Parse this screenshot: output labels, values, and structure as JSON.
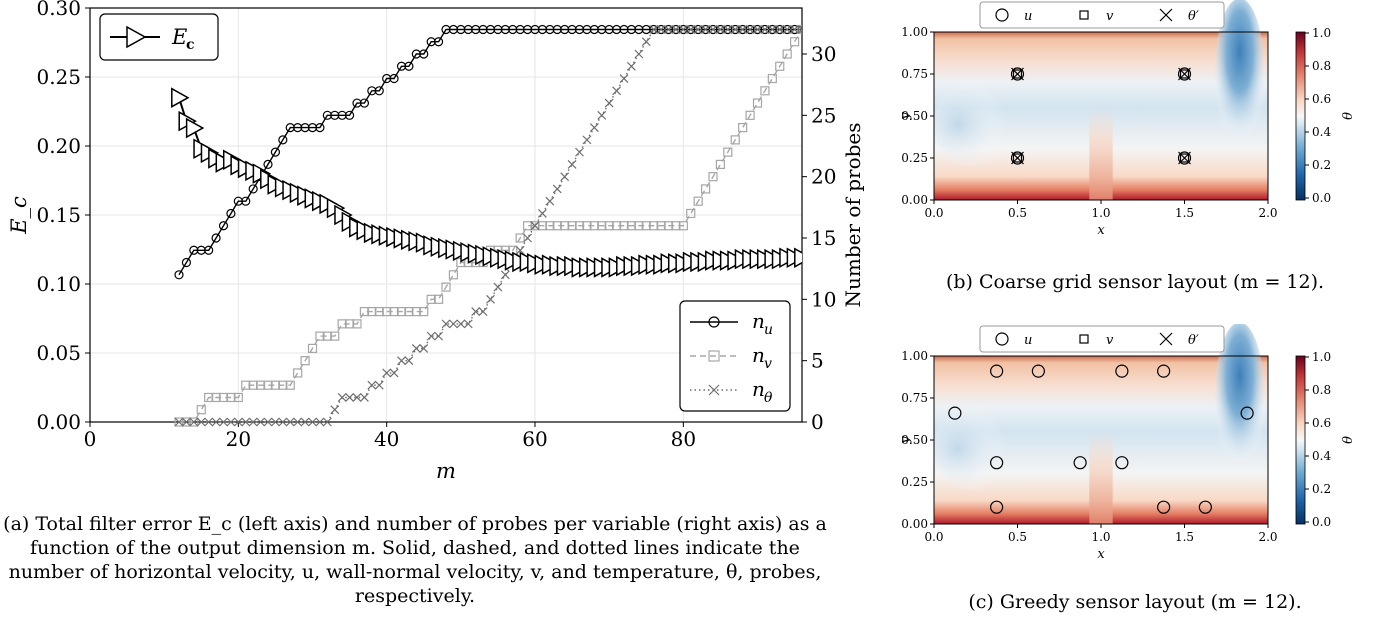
{
  "captions": {
    "a": "(a) Total filter error E_c (left axis) and number of probes per variable (right axis) as a function of the output dimension m. Solid, dashed, and dotted lines indicate the number of horizontal velocity, u, wall-normal velocity, v, and temperature, θ, probes, respectively.",
    "b": "(b) Coarse grid sensor layout (m = 12).",
    "c": "(c) Greedy sensor layout (m = 12)."
  },
  "chart_data": [
    {
      "type": "line",
      "xlabel": "m",
      "ylabel": "E_c",
      "y2label": "Number of probes",
      "xlim": [
        0,
        96
      ],
      "ylim": [
        0,
        0.3
      ],
      "y2lim": [
        0,
        33.75
      ],
      "xticks": [
        "0",
        "20",
        "40",
        "60",
        "80"
      ],
      "yticks": [
        "0.00",
        "0.05",
        "0.10",
        "0.15",
        "0.20",
        "0.25",
        "0.30"
      ],
      "y2ticks": [
        "0",
        "5",
        "10",
        "15",
        "20",
        "25",
        "30"
      ],
      "grid": true,
      "legend_top_left": [
        "E_c"
      ],
      "legend_bottom_right": [
        "n_u",
        "n_v",
        "n_θ"
      ],
      "colors": {
        "Ec": "#000000",
        "nu": "#000000",
        "nv": "#a6a6a6",
        "ntheta": "#6e6e6e"
      },
      "series": [
        {
          "name": "E_c",
          "axis": "left",
          "marker": "triangle-right",
          "style": "solid",
          "x": [
            12,
            13,
            14,
            15,
            16,
            17,
            18,
            19,
            20,
            21,
            22,
            23,
            24,
            25,
            26,
            27,
            28,
            29,
            30,
            31,
            32,
            33,
            34,
            35,
            36,
            37,
            38,
            39,
            40,
            41,
            42,
            43,
            44,
            45,
            46,
            47,
            48,
            49,
            50,
            51,
            52,
            53,
            54,
            55,
            56,
            57,
            58,
            59,
            60,
            61,
            62,
            63,
            64,
            65,
            66,
            67,
            68,
            69,
            70,
            71,
            72,
            73,
            74,
            75,
            76,
            77,
            78,
            79,
            80,
            81,
            82,
            83,
            84,
            85,
            86,
            87,
            88,
            89,
            90,
            91,
            92,
            93,
            94,
            95,
            96
          ],
          "y": [
            0.235,
            0.218,
            0.213,
            0.198,
            0.195,
            0.191,
            0.188,
            0.19,
            0.186,
            0.184,
            0.182,
            0.18,
            0.176,
            0.172,
            0.17,
            0.168,
            0.166,
            0.164,
            0.162,
            0.16,
            0.158,
            0.155,
            0.15,
            0.145,
            0.141,
            0.139,
            0.137,
            0.136,
            0.135,
            0.134,
            0.133,
            0.132,
            0.131,
            0.13,
            0.128,
            0.127,
            0.126,
            0.125,
            0.124,
            0.123,
            0.122,
            0.121,
            0.12,
            0.119,
            0.118,
            0.117,
            0.116,
            0.116,
            0.115,
            0.114,
            0.114,
            0.113,
            0.113,
            0.113,
            0.112,
            0.112,
            0.112,
            0.112,
            0.112,
            0.112,
            0.113,
            0.113,
            0.113,
            0.114,
            0.114,
            0.114,
            0.115,
            0.115,
            0.115,
            0.116,
            0.116,
            0.116,
            0.117,
            0.117,
            0.117,
            0.117,
            0.118,
            0.118,
            0.118,
            0.118,
            0.118,
            0.118,
            0.119,
            0.119,
            0.119
          ]
        },
        {
          "name": "n_u",
          "axis": "right",
          "marker": "circle",
          "style": "solid",
          "x": [
            12,
            13,
            14,
            15,
            16,
            17,
            18,
            19,
            20,
            21,
            22,
            23,
            24,
            25,
            26,
            27,
            28,
            29,
            30,
            31,
            32,
            33,
            34,
            35,
            36,
            37,
            38,
            39,
            40,
            41,
            42,
            43,
            44,
            45,
            46,
            47,
            48,
            49,
            50,
            51,
            52,
            53,
            54,
            55,
            56,
            57,
            58,
            59,
            60,
            61,
            62,
            63,
            64,
            65,
            66,
            67,
            68,
            69,
            70,
            71,
            72,
            73,
            74,
            75,
            76,
            77,
            78,
            79,
            80,
            81,
            82,
            83,
            84,
            85,
            86,
            87,
            88,
            89,
            90,
            91,
            92,
            93,
            94,
            95,
            96
          ],
          "y": [
            12,
            13,
            14,
            14,
            14,
            15,
            16,
            17,
            18,
            18,
            19,
            20,
            21,
            22,
            23,
            24,
            24,
            24,
            24,
            24,
            25,
            25,
            25,
            25,
            26,
            26,
            27,
            27,
            28,
            28,
            29,
            29,
            30,
            30,
            31,
            31,
            32,
            32,
            32,
            32,
            32,
            32,
            32,
            32,
            32,
            32,
            32,
            32,
            32,
            32,
            32,
            32,
            32,
            32,
            32,
            32,
            32,
            32,
            32,
            32,
            32,
            32,
            32,
            32,
            32,
            32,
            32,
            32,
            32,
            32,
            32,
            32,
            32,
            32,
            32,
            32,
            32,
            32,
            32,
            32,
            32,
            32,
            32,
            32,
            32
          ]
        },
        {
          "name": "n_v",
          "axis": "right",
          "marker": "square",
          "style": "dashed",
          "x": [
            12,
            13,
            14,
            15,
            16,
            17,
            18,
            19,
            20,
            21,
            22,
            23,
            24,
            25,
            26,
            27,
            28,
            29,
            30,
            31,
            32,
            33,
            34,
            35,
            36,
            37,
            38,
            39,
            40,
            41,
            42,
            43,
            44,
            45,
            46,
            47,
            48,
            49,
            50,
            51,
            52,
            53,
            54,
            55,
            56,
            57,
            58,
            59,
            60,
            61,
            62,
            63,
            64,
            65,
            66,
            67,
            68,
            69,
            70,
            71,
            72,
            73,
            74,
            75,
            76,
            77,
            78,
            79,
            80,
            81,
            82,
            83,
            84,
            85,
            86,
            87,
            88,
            89,
            90,
            91,
            92,
            93,
            94,
            95,
            96
          ],
          "y": [
            0,
            0,
            0,
            1,
            2,
            2,
            2,
            2,
            2,
            3,
            3,
            3,
            3,
            3,
            3,
            3,
            4,
            5,
            6,
            7,
            7,
            7,
            8,
            8,
            8,
            9,
            9,
            9,
            9,
            9,
            9,
            9,
            9,
            9,
            10,
            10,
            11,
            12,
            13,
            13,
            13,
            13,
            14,
            14,
            14,
            14,
            15,
            16,
            16,
            16,
            16,
            16,
            16,
            16,
            16,
            16,
            16,
            16,
            16,
            16,
            16,
            16,
            16,
            16,
            16,
            16,
            16,
            16,
            16,
            17,
            18,
            19,
            20,
            21,
            22,
            23,
            24,
            25,
            26,
            27,
            28,
            29,
            30,
            31,
            32
          ]
        },
        {
          "name": "n_θ",
          "axis": "right",
          "marker": "x",
          "style": "dotted",
          "x": [
            12,
            13,
            14,
            15,
            16,
            17,
            18,
            19,
            20,
            21,
            22,
            23,
            24,
            25,
            26,
            27,
            28,
            29,
            30,
            31,
            32,
            33,
            34,
            35,
            36,
            37,
            38,
            39,
            40,
            41,
            42,
            43,
            44,
            45,
            46,
            47,
            48,
            49,
            50,
            51,
            52,
            53,
            54,
            55,
            56,
            57,
            58,
            59,
            60,
            61,
            62,
            63,
            64,
            65,
            66,
            67,
            68,
            69,
            70,
            71,
            72,
            73,
            74,
            75,
            76,
            77,
            78,
            79,
            80,
            81,
            82,
            83,
            84,
            85,
            86,
            87,
            88,
            89,
            90,
            91,
            92,
            93,
            94,
            95,
            96
          ],
          "y": [
            0,
            0,
            0,
            0,
            0,
            0,
            0,
            0,
            0,
            0,
            0,
            0,
            0,
            0,
            0,
            0,
            0,
            0,
            0,
            0,
            0,
            1,
            2,
            2,
            2,
            2,
            3,
            3,
            4,
            4,
            5,
            5,
            6,
            6,
            7,
            7,
            8,
            8,
            8,
            8,
            9,
            9,
            10,
            11,
            12,
            13,
            14,
            15,
            16,
            17,
            18,
            19,
            20,
            21,
            22,
            23,
            24,
            25,
            26,
            27,
            28,
            29,
            30,
            31,
            32,
            32,
            32,
            32,
            32,
            32,
            32,
            32,
            32,
            32,
            32,
            32,
            32,
            32,
            32,
            32,
            32,
            32,
            32,
            32,
            32
          ]
        }
      ]
    },
    {
      "type": "heatmap",
      "name": "coarse",
      "xlabel": "x",
      "ylabel": "y",
      "colorbar_label": "θ",
      "xlim": [
        0,
        2
      ],
      "ylim": [
        0,
        1
      ],
      "clim": [
        0,
        1
      ],
      "xticks": [
        "0.0",
        "0.5",
        "1.0",
        "1.5",
        "2.0"
      ],
      "yticks": [
        "0.00",
        "0.25",
        "0.50",
        "0.75",
        "1.00"
      ],
      "cbticks": [
        "0.0",
        "0.2",
        "0.4",
        "0.6",
        "0.8",
        "1.0"
      ],
      "legend": [
        "u",
        "v",
        "θ′"
      ],
      "sensors_u": [
        [
          0.5,
          0.75
        ],
        [
          1.5,
          0.75
        ],
        [
          0.5,
          0.25
        ],
        [
          1.5,
          0.25
        ]
      ],
      "sensors_v": [
        [
          0.5,
          0.75
        ],
        [
          1.5,
          0.75
        ],
        [
          0.5,
          0.25
        ],
        [
          1.5,
          0.25
        ]
      ],
      "sensors_theta": [
        [
          0.5,
          0.75
        ],
        [
          1.5,
          0.75
        ],
        [
          0.5,
          0.25
        ],
        [
          1.5,
          0.25
        ]
      ]
    },
    {
      "type": "heatmap",
      "name": "greedy",
      "xlabel": "x",
      "ylabel": "y",
      "colorbar_label": "θ",
      "xlim": [
        0,
        2
      ],
      "ylim": [
        0,
        1
      ],
      "clim": [
        0,
        1
      ],
      "xticks": [
        "0.0",
        "0.5",
        "1.0",
        "1.5",
        "2.0"
      ],
      "yticks": [
        "0.00",
        "0.25",
        "0.50",
        "0.75",
        "1.00"
      ],
      "cbticks": [
        "0.0",
        "0.2",
        "0.4",
        "0.6",
        "0.8",
        "1.0"
      ],
      "legend": [
        "u",
        "v",
        "θ′"
      ],
      "sensors_u": [
        [
          0.375,
          0.91
        ],
        [
          0.625,
          0.91
        ],
        [
          1.125,
          0.91
        ],
        [
          1.375,
          0.91
        ],
        [
          0.125,
          0.66
        ],
        [
          1.875,
          0.66
        ],
        [
          0.375,
          0.365
        ],
        [
          0.875,
          0.365
        ],
        [
          1.125,
          0.365
        ],
        [
          0.375,
          0.1
        ],
        [
          1.375,
          0.1
        ],
        [
          1.625,
          0.1
        ]
      ],
      "sensors_v": [],
      "sensors_theta": []
    }
  ]
}
